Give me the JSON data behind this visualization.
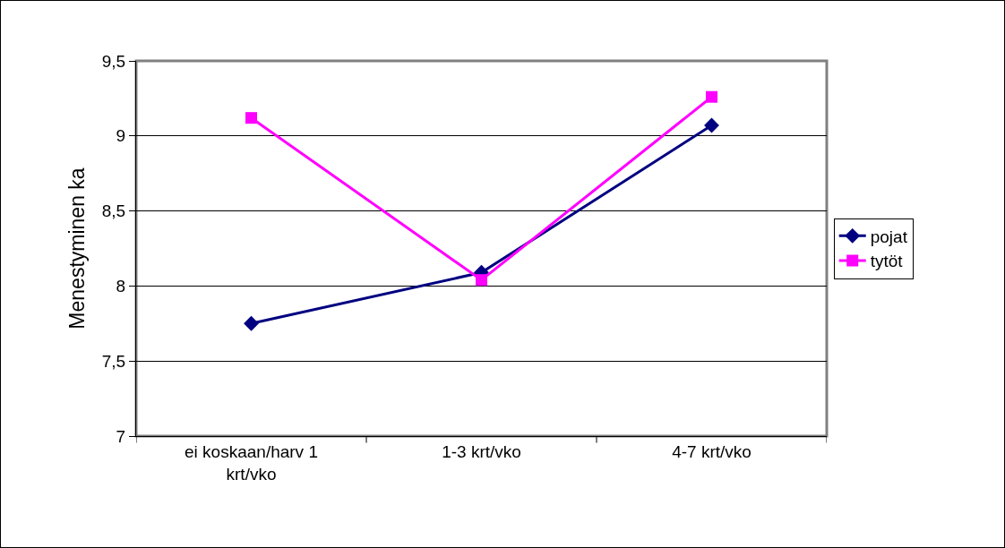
{
  "chart_data": {
    "type": "line",
    "ylabel": "Menestyminen ka",
    "categories": [
      "ei koskaan/harv 1 krt/vko",
      "1-3 krt/vko",
      "4-7 krt/vko"
    ],
    "series": [
      {
        "name": "pojat",
        "color": "#000080",
        "marker": "diamond",
        "values": [
          7.75,
          8.09,
          9.07
        ]
      },
      {
        "name": "tytöt",
        "color": "#ff00ff",
        "marker": "square",
        "values": [
          9.12,
          8.04,
          9.26
        ]
      }
    ],
    "ylim": [
      7,
      9.5
    ],
    "yticks": [
      {
        "value": 7,
        "label": "7"
      },
      {
        "value": 7.5,
        "label": "7,5"
      },
      {
        "value": 8,
        "label": "8"
      },
      {
        "value": 8.5,
        "label": "8,5"
      },
      {
        "value": 9,
        "label": "9"
      },
      {
        "value": 9.5,
        "label": "9,5"
      }
    ],
    "grid": "y",
    "legend": "right",
    "line_style": "solid"
  }
}
